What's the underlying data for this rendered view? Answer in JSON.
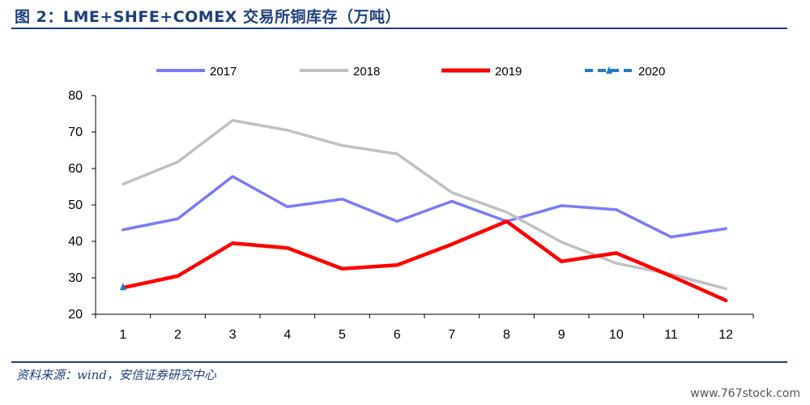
{
  "title": "图 2：LME+SHFE+COMEX 交易所铜库存（万吨）",
  "source": "资料来源：wind，安信证券研究中心",
  "watermark": "www.767stock.com",
  "chart_data": {
    "type": "line",
    "title": "图 2：LME+SHFE+COMEX 交易所铜库存（万吨）",
    "xlabel": "",
    "ylabel": "",
    "categories": [
      "1",
      "2",
      "3",
      "4",
      "5",
      "6",
      "7",
      "8",
      "9",
      "10",
      "11",
      "12"
    ],
    "ylim": [
      20,
      80
    ],
    "yticks": [
      20,
      30,
      40,
      50,
      60,
      70,
      80
    ],
    "grid": false,
    "legend": "top",
    "series": [
      {
        "name": "2017",
        "color": "#7b7bf7",
        "dashed": false,
        "values": [
          43.2,
          46.2,
          57.8,
          49.5,
          51.6,
          45.5,
          51.0,
          45.5,
          49.8,
          48.7,
          41.2,
          43.5
        ]
      },
      {
        "name": "2018",
        "color": "#c0c0c0",
        "dashed": false,
        "values": [
          55.7,
          61.8,
          73.2,
          70.5,
          66.3,
          64.0,
          53.4,
          48.0,
          39.8,
          34.0,
          31.0,
          27.0
        ]
      },
      {
        "name": "2019",
        "color": "#ff0000",
        "dashed": false,
        "values": [
          27.3,
          30.5,
          39.5,
          38.2,
          32.5,
          33.5,
          39.2,
          45.5,
          34.5,
          36.8,
          30.5,
          23.8
        ]
      },
      {
        "name": "2020",
        "color": "#1f78c8",
        "dashed": true,
        "values": [
          27.5,
          null,
          null,
          null,
          null,
          null,
          null,
          null,
          null,
          null,
          null,
          null
        ]
      }
    ]
  }
}
